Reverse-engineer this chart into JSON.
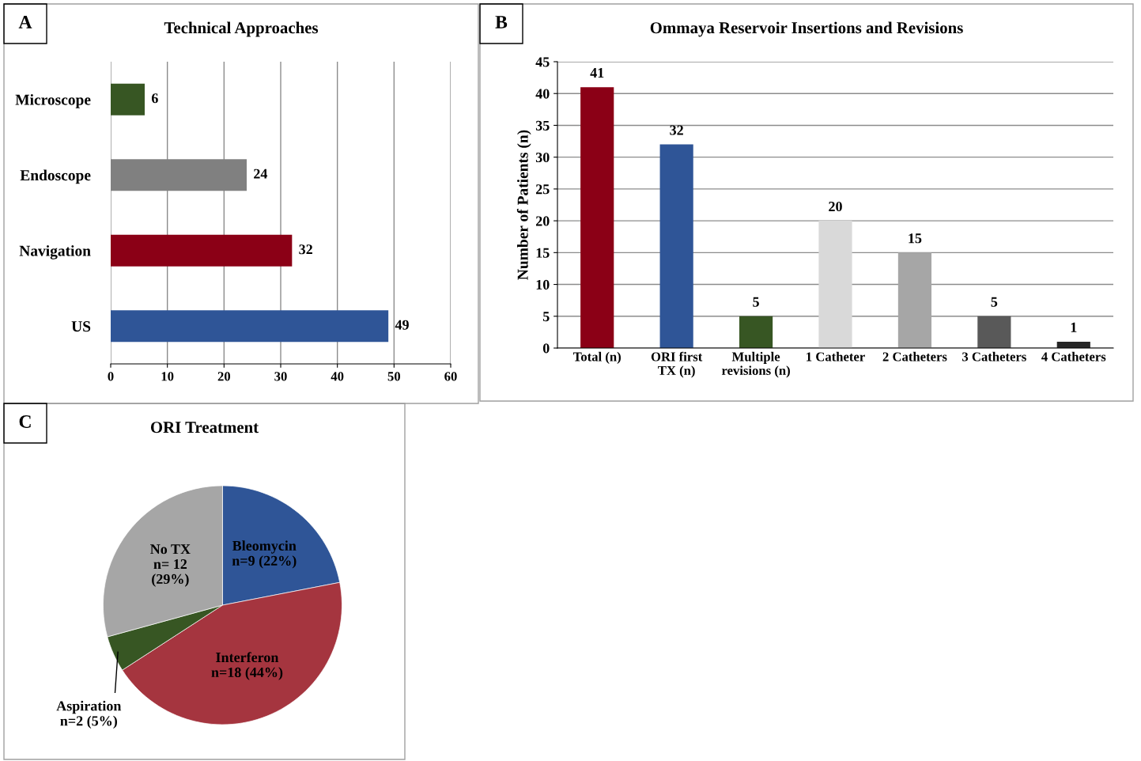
{
  "chart_data": [
    {
      "type": "bar",
      "orientation": "horizontal",
      "title": "Technical Approaches",
      "annotations": [
        "A"
      ],
      "categories": [
        "Microscope",
        "Endoscope",
        "Navigation",
        "US"
      ],
      "values": [
        6,
        24,
        32,
        49
      ],
      "colors": [
        "#375623",
        "#808080",
        "#8b0016",
        "#2f5597"
      ],
      "xlim": [
        0,
        60
      ],
      "xticks": [
        0,
        10,
        20,
        30,
        40,
        50,
        60
      ],
      "grid": "x",
      "data_labels": true,
      "legend": false
    },
    {
      "type": "bar",
      "title": "Ommaya Reservoir Insertions and Revisions",
      "annotations": [
        "B"
      ],
      "ylabel": "Number of Patients (n)",
      "categories": [
        "Total (n)",
        "ORI first\nTX (n)",
        "Multiple\nrevisions (n)",
        "1 Catheter",
        "2 Catheters",
        "3 Catheters",
        "4 Catheters"
      ],
      "values": [
        41,
        32,
        5,
        20,
        15,
        5,
        1
      ],
      "colors": [
        "#8b0016",
        "#2f5597",
        "#375623",
        "#d9d9d9",
        "#a6a6a6",
        "#595959",
        "#262626"
      ],
      "ylim": [
        0,
        45
      ],
      "yticks": [
        0,
        5,
        10,
        15,
        20,
        25,
        30,
        35,
        40,
        45
      ],
      "grid": "y",
      "data_labels": true,
      "legend": false
    },
    {
      "type": "pie",
      "title": "ORI Treatment",
      "annotations": [
        "C"
      ],
      "categories": [
        "Bleomycin\nn=9 (22%)",
        "Interferon\nn=18 (44%)",
        "Aspiration\nn=2 (5%)",
        "No TX\nn= 12\n(29%)"
      ],
      "values": [
        9,
        18,
        2,
        12
      ],
      "colors": [
        "#2f5597",
        "#a5353f",
        "#375623",
        "#a6a6a6"
      ],
      "legend": false
    }
  ]
}
